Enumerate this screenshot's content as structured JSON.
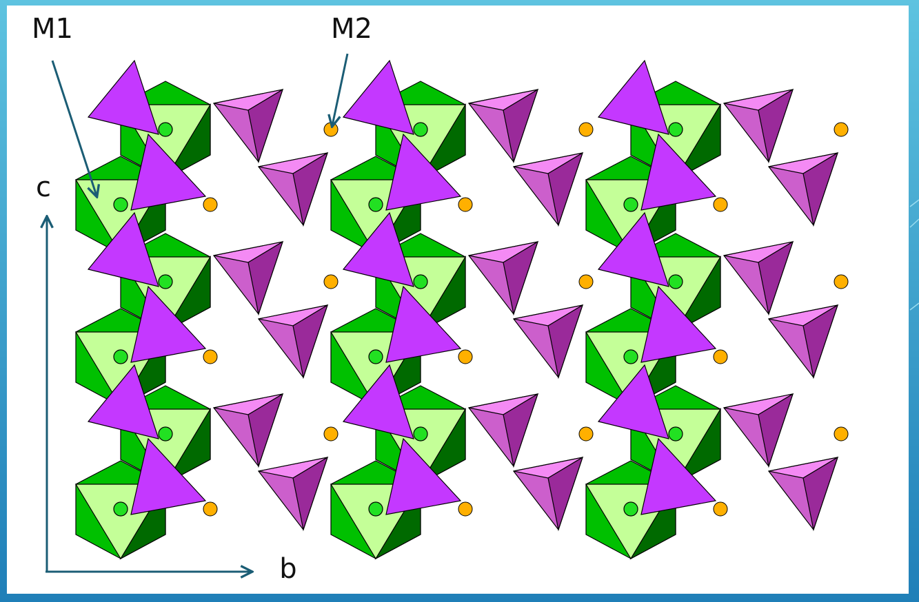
{
  "labels": {
    "m1": "M1",
    "m2": "M2",
    "axis_c": "c",
    "axis_b": "b"
  }
}
